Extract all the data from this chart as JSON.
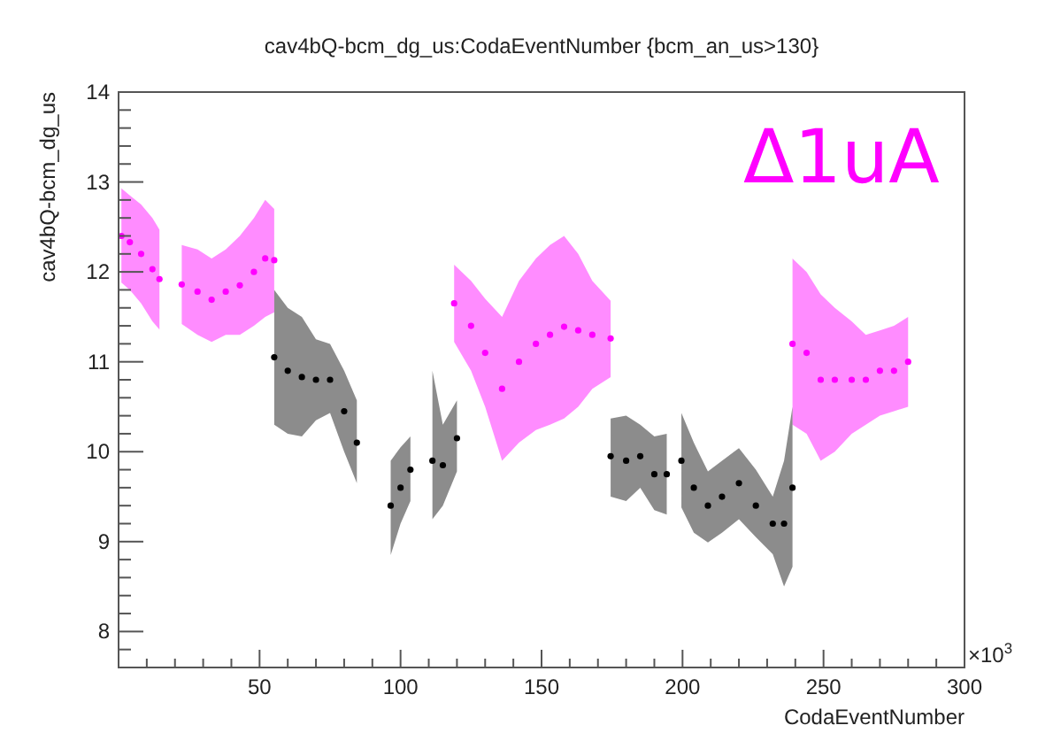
{
  "chart_data": {
    "type": "scatter",
    "title": "cav4bQ-bcm_dg_us:CodaEventNumber {bcm_an_us>130}",
    "xlabel": "CodaEventNumber",
    "ylabel": "cav4bQ-bcm_dg_us",
    "annotations": [
      "Δ1uA",
      "×10$^{3}$"
    ],
    "xlim": [
      0,
      300
    ],
    "ylim": [
      7.6,
      14
    ],
    "xticks": [
      {
        "value": 10,
        "label": null
      },
      {
        "value": 20,
        "label": null
      },
      {
        "value": 30,
        "label": null
      },
      {
        "value": 40,
        "label": null
      },
      50,
      {
        "value": 60,
        "label": null
      },
      {
        "value": 70,
        "label": null
      },
      {
        "value": 80,
        "label": null
      },
      {
        "value": 90,
        "label": null
      },
      100,
      {
        "value": 110,
        "label": null
      },
      {
        "value": 120,
        "label": null
      },
      {
        "value": 130,
        "label": null
      },
      {
        "value": 140,
        "label": null
      },
      150,
      {
        "value": 160,
        "label": null
      },
      {
        "value": 170,
        "label": null
      },
      {
        "value": 180,
        "label": null
      },
      {
        "value": 190,
        "label": null
      },
      200,
      {
        "value": 210,
        "label": null
      },
      {
        "value": 220,
        "label": null
      },
      {
        "value": 230,
        "label": null
      },
      {
        "value": 240,
        "label": null
      },
      250,
      {
        "value": 260,
        "label": null
      },
      {
        "value": 270,
        "label": null
      },
      {
        "value": 280,
        "label": null
      },
      {
        "value": 290,
        "label": null
      },
      300
    ],
    "yticks": [
      {
        "value": 7.8,
        "label": null
      },
      8,
      {
        "value": 8.2,
        "label": null
      },
      {
        "value": 8.4,
        "label": null
      },
      {
        "value": 8.6,
        "label": null
      },
      {
        "value": 8.8,
        "label": null
      },
      9,
      {
        "value": 9.2,
        "label": null
      },
      {
        "value": 9.4,
        "label": null
      },
      {
        "value": 9.6,
        "label": null
      },
      {
        "value": 9.8,
        "label": null
      },
      10,
      {
        "value": 10.2,
        "label": null
      },
      {
        "value": 10.4,
        "label": null
      },
      {
        "value": 10.6,
        "label": null
      },
      {
        "value": 10.8,
        "label": null
      },
      11,
      {
        "value": 11.2,
        "label": null
      },
      {
        "value": 11.4,
        "label": null
      },
      {
        "value": 11.6,
        "label": null
      },
      {
        "value": 11.8,
        "label": null
      },
      12,
      {
        "value": 12.2,
        "label": null
      },
      {
        "value": 12.4,
        "label": null
      },
      {
        "value": 12.6,
        "label": null
      },
      {
        "value": 12.8,
        "label": null
      },
      13,
      {
        "value": 13.2,
        "label": null
      },
      {
        "value": 13.4,
        "label": null
      },
      {
        "value": 13.6,
        "label": null
      },
      {
        "value": 13.8,
        "label": null
      },
      14
    ],
    "grid": false,
    "marker": "circle",
    "series": [
      {
        "color": "#ff00ff",
        "x": [
          1,
          4,
          8,
          12,
          14.5,
          18,
          22.4,
          28,
          33,
          38,
          43,
          48,
          52,
          55.2,
          87,
          119,
          125,
          130,
          136,
          142,
          148,
          153,
          158,
          163,
          168,
          174.5,
          207,
          239,
          244,
          249,
          254,
          260,
          265,
          270,
          275,
          280
        ],
        "values": [
          12.4,
          12.33,
          12.2,
          12.03,
          11.92,
          null,
          11.86,
          11.78,
          11.69,
          11.78,
          11.85,
          12.0,
          12.15,
          12.13,
          null,
          11.65,
          11.4,
          11.1,
          10.7,
          11.0,
          11.2,
          11.3,
          11.39,
          11.35,
          11.3,
          11.26,
          null,
          11.2,
          11.1,
          10.8,
          10.8,
          10.8,
          10.8,
          10.9,
          10.9,
          11.0
        ],
        "upper": [
          12.93,
          12.85,
          12.75,
          12.6,
          12.47,
          null,
          12.3,
          12.25,
          12.15,
          12.25,
          12.4,
          12.6,
          12.8,
          12.7,
          null,
          12.08,
          11.9,
          11.7,
          11.5,
          11.9,
          12.15,
          12.3,
          12.4,
          12.2,
          11.9,
          11.68,
          null,
          12.15,
          12.0,
          11.75,
          11.6,
          11.45,
          11.3,
          11.35,
          11.4,
          11.5
        ],
        "lower": [
          11.88,
          11.8,
          11.65,
          11.45,
          11.36,
          null,
          11.42,
          11.3,
          11.22,
          11.3,
          11.3,
          11.4,
          11.5,
          11.55,
          null,
          11.22,
          10.9,
          10.5,
          9.9,
          10.1,
          10.24,
          10.3,
          10.37,
          10.5,
          10.7,
          10.83,
          null,
          10.3,
          10.2,
          9.9,
          10.0,
          10.2,
          10.3,
          10.4,
          10.45,
          10.5
        ]
      },
      {
        "color": "#000000",
        "x": [
          55.2,
          60,
          65,
          70,
          75,
          80,
          84.5,
          90,
          96.5,
          100,
          103.5,
          107,
          111.3,
          115,
          120,
          147,
          174.5,
          180,
          185,
          190,
          194.4,
          197,
          199.6,
          204,
          209,
          214,
          220,
          226,
          232,
          236,
          239
        ],
        "values": [
          11.05,
          10.9,
          10.83,
          10.8,
          10.8,
          10.45,
          10.1,
          null,
          9.4,
          9.6,
          9.8,
          null,
          9.9,
          9.85,
          10.15,
          null,
          9.95,
          9.9,
          9.95,
          9.75,
          9.75,
          null,
          9.9,
          9.6,
          9.4,
          9.5,
          9.65,
          9.4,
          9.2,
          9.2,
          9.6
        ],
        "upper": [
          11.8,
          11.6,
          11.5,
          11.25,
          11.2,
          10.9,
          10.57,
          null,
          9.9,
          10.05,
          10.17,
          null,
          10.9,
          10.3,
          10.57,
          null,
          10.37,
          10.4,
          10.3,
          10.17,
          10.2,
          null,
          10.43,
          10.1,
          9.78,
          9.9,
          10.04,
          9.8,
          9.5,
          9.9,
          10.5
        ],
        "lower": [
          10.3,
          10.2,
          10.17,
          10.35,
          10.43,
          10.0,
          9.65,
          null,
          8.85,
          9.2,
          9.45,
          null,
          9.25,
          9.4,
          9.78,
          null,
          9.5,
          9.45,
          9.6,
          9.35,
          9.3,
          null,
          9.38,
          9.1,
          8.99,
          9.1,
          9.25,
          9.05,
          8.86,
          8.5,
          8.72
        ]
      }
    ]
  }
}
